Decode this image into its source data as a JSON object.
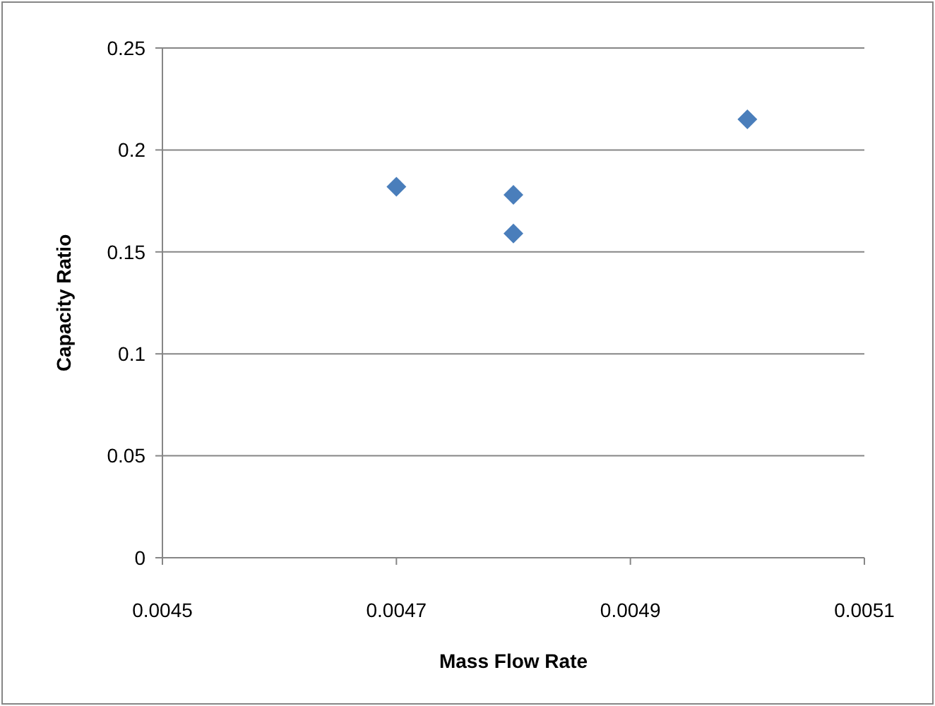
{
  "chart_data": {
    "type": "scatter",
    "xlabel": "Mass Flow Rate",
    "ylabel": "Capacity Ratio",
    "x": [
      0.0047,
      0.0048,
      0.0048,
      0.005
    ],
    "values": [
      0.182,
      0.178,
      0.159,
      0.215
    ],
    "color": "#4a7ebb",
    "marker": "diamond",
    "xlim": [
      0.0045,
      0.0051
    ],
    "xticks": [
      0.0045,
      0.0047,
      0.0049,
      0.0051
    ],
    "ylim": [
      0,
      0.25
    ],
    "yticks": [
      0,
      0.05,
      0.1,
      0.15,
      0.2,
      0.25
    ],
    "grid": "y"
  }
}
